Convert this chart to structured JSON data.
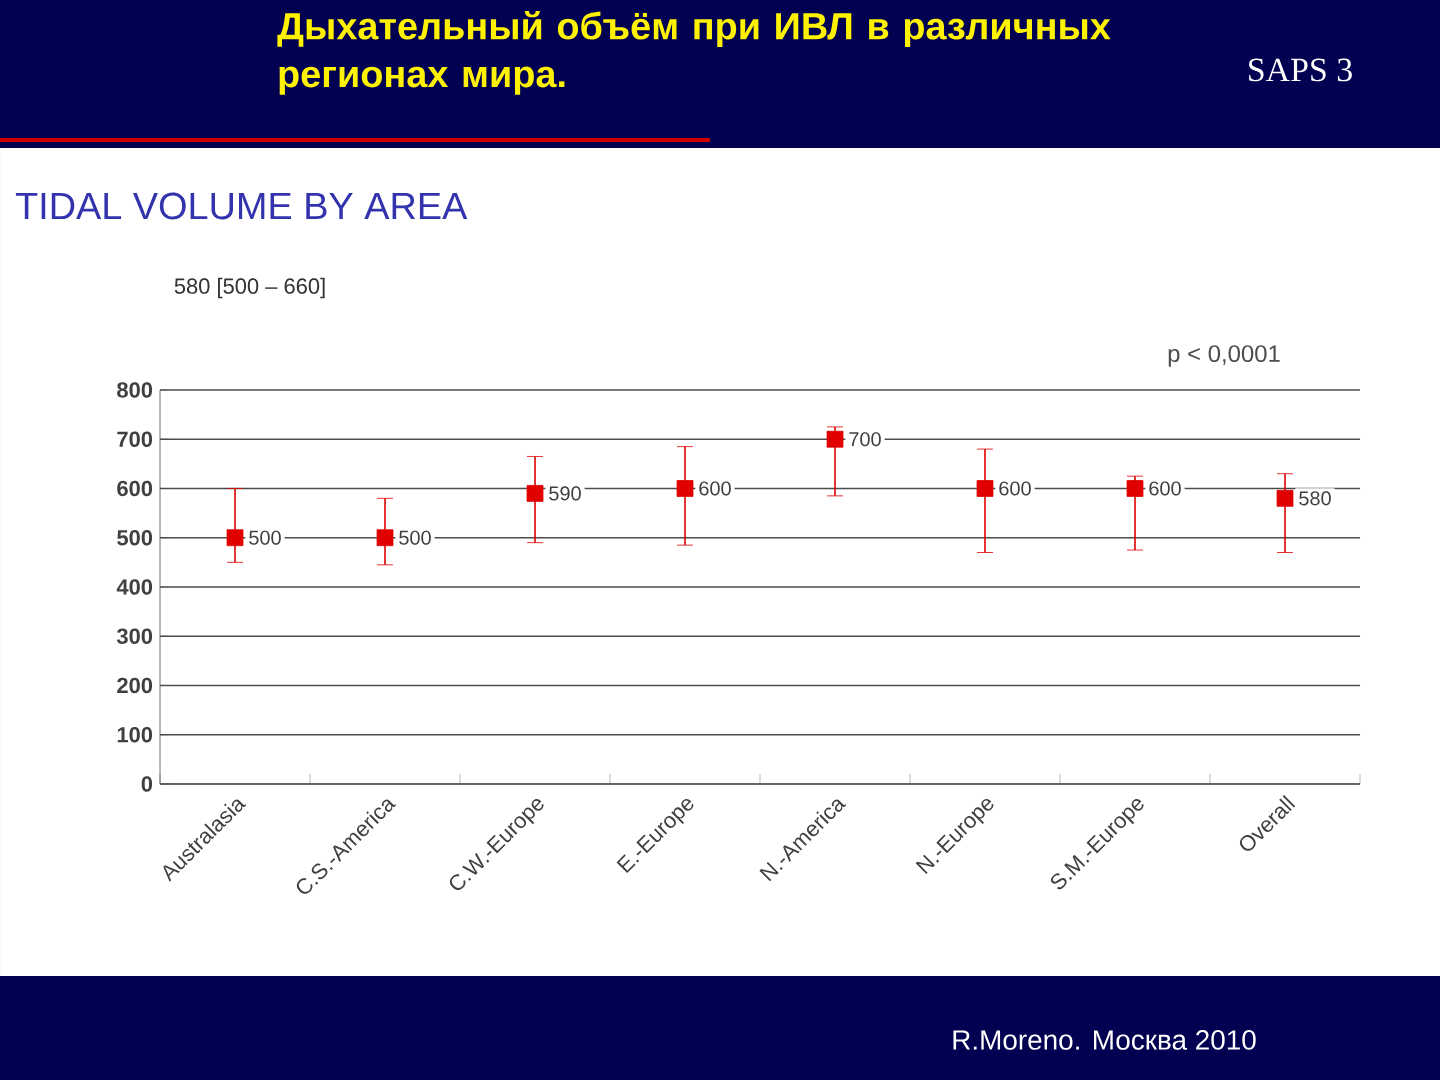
{
  "chart_data": {
    "type": "scatter",
    "title": "Дыхательный объём при ИВЛ в различных регионах мира.",
    "subtitle": "TIDAL VOLUME BY AREA",
    "annotations": [
      "SAPS 3",
      "580 [500 – 660]",
      "p < 0,0001",
      "R.Moreno. Москва 2010"
    ],
    "categories": [
      "Australasia",
      "C.S.-America",
      "C.W.-Europe",
      "E.-Europe",
      "N.-America",
      "N.-Europe",
      "S.M.-Europe",
      "Overall"
    ],
    "values": [
      500,
      500,
      590,
      600,
      700,
      600,
      600,
      580
    ],
    "errors": [
      [
        450,
        600
      ],
      [
        445,
        580
      ],
      [
        490,
        665
      ],
      [
        485,
        685
      ],
      [
        585,
        725
      ],
      [
        470,
        680
      ],
      [
        475,
        625
      ],
      [
        470,
        630
      ]
    ],
    "color": "#e00000",
    "marker": "square",
    "data_labels": true,
    "grid": "y",
    "ylim": [
      0,
      800
    ],
    "yticks": [
      0,
      100,
      200,
      300,
      400,
      500,
      600,
      700,
      800
    ]
  }
}
